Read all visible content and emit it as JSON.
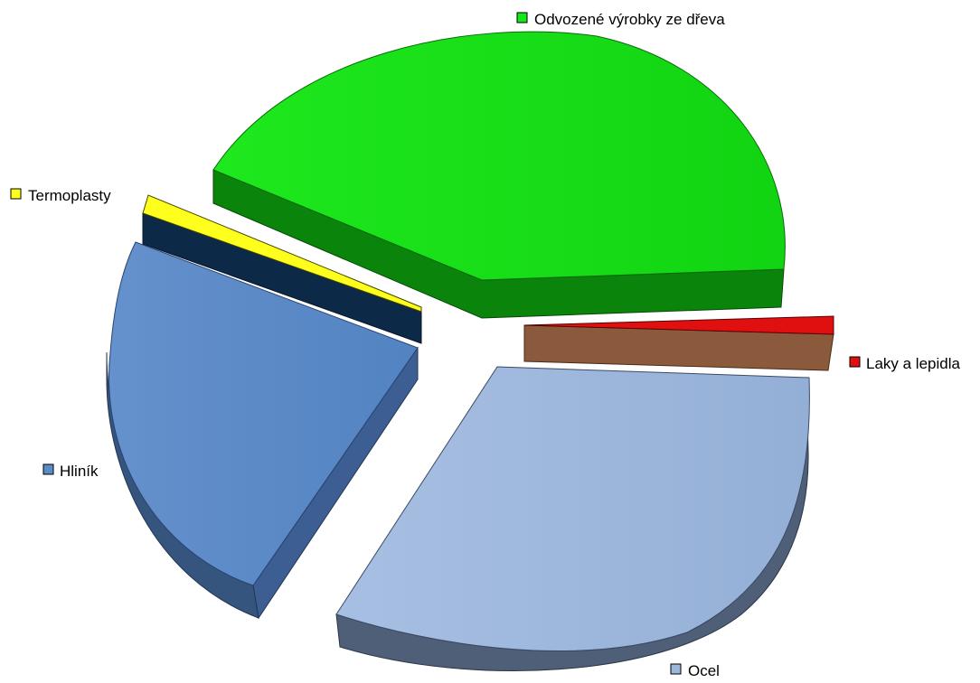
{
  "chart_data": {
    "type": "pie",
    "style": "3d-exploded",
    "title": "",
    "legend_placement": "labels next to slices",
    "slices": [
      {
        "label": "Odvozené výrobky ze dřeva",
        "value": 41.5,
        "color": "#17e617",
        "side_color": "#0a800a"
      },
      {
        "label": "Laky a lepidla",
        "value": 1.0,
        "color": "#e01010",
        "side_color": "#8b5a3c"
      },
      {
        "label": "Ocel",
        "value": 34.0,
        "color": "#9cb6dc",
        "side_color": "#4f5f78"
      },
      {
        "label": "Hliník",
        "value": 22.5,
        "color": "#5b8cc8",
        "side_color": "#35547e"
      },
      {
        "label": "Termoplasty",
        "value": 1.0,
        "color": "#ffff1e",
        "side_color": "#0c2a48"
      }
    ]
  }
}
